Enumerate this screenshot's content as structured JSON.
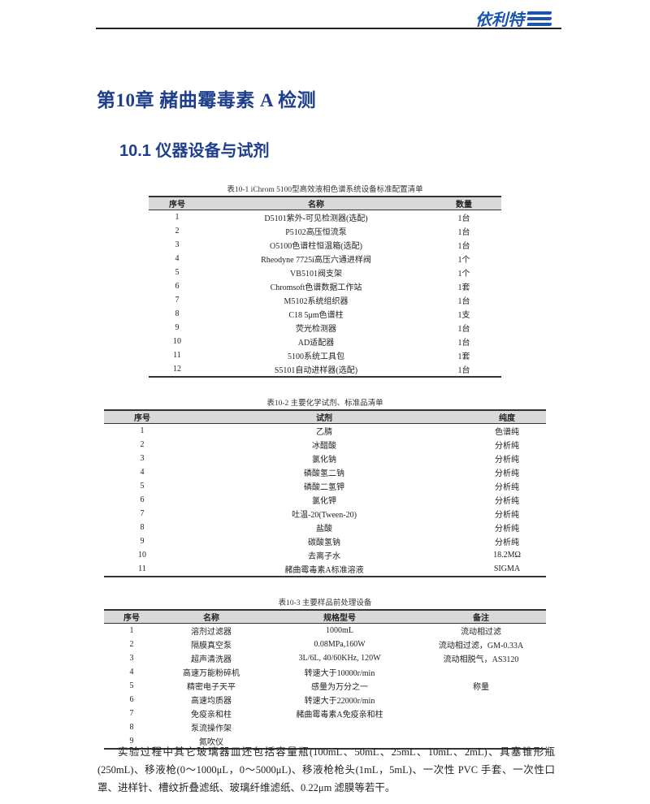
{
  "header": {
    "logo_text": "依利特",
    "brand_color": "#1a56b0"
  },
  "chapter_title": "第10章  赭曲霉毒素 A 检测",
  "section_title": "10.1   仪器设备与试剂",
  "heading_color": "#1f3f8c",
  "table1": {
    "caption": "表10-1    iChrom 5100型高效液相色谱系统设备标准配置清单",
    "headers": [
      "序号",
      "名称",
      "数量"
    ],
    "rows": [
      [
        "1",
        "D5101紫外-可见检测器(选配)",
        "1台"
      ],
      [
        "2",
        "P5102高压恒流泵",
        "1台"
      ],
      [
        "3",
        "O5100色谱柱恒温箱(选配)",
        "1台"
      ],
      [
        "4",
        "Rheodyne 7725i高压六通进样阀",
        "1个"
      ],
      [
        "5",
        "VB5101阀支架",
        "1个"
      ],
      [
        "6",
        "Chromsoft色谱数据工作站",
        "1套"
      ],
      [
        "7",
        "M5102系统组织器",
        "1台"
      ],
      [
        "8",
        "C18 5μm色谱柱",
        "1支"
      ],
      [
        "9",
        "荧光检测器",
        "1台"
      ],
      [
        "10",
        "AD适配器",
        "1台"
      ],
      [
        "11",
        "5100系统工具包",
        "1套"
      ],
      [
        "12",
        "S5101自动进样器(选配)",
        "1台"
      ]
    ]
  },
  "table2": {
    "caption": "表10-2    主要化学试剂、标准品清单",
    "headers": [
      "序号",
      "试剂",
      "纯度"
    ],
    "rows": [
      [
        "1",
        "乙腈",
        "色谱纯"
      ],
      [
        "2",
        "冰醋酸",
        "分析纯"
      ],
      [
        "3",
        "氯化钠",
        "分析纯"
      ],
      [
        "4",
        "磷酸氢二钠",
        "分析纯"
      ],
      [
        "5",
        "磷酸二氢钾",
        "分析纯"
      ],
      [
        "6",
        "氯化钾",
        "分析纯"
      ],
      [
        "7",
        "吐温-20(Tween-20)",
        "分析纯"
      ],
      [
        "8",
        "盐酸",
        "分析纯"
      ],
      [
        "9",
        "碳酸氢钠",
        "分析纯"
      ],
      [
        "10",
        "去离子水",
        "18.2MΩ"
      ],
      [
        "11",
        "赭曲霉毒素A标准溶液",
        "SIGMA"
      ]
    ]
  },
  "table3": {
    "caption": "表10-3    主要样品前处理设备",
    "headers": [
      "序号",
      "名称",
      "规格型号",
      "备注"
    ],
    "rows": [
      [
        "1",
        "溶剂过滤器",
        "1000mL",
        "流动相过滤"
      ],
      [
        "2",
        "隔膜真空泵",
        "0.08MPa,160W",
        "流动相过滤，GM-0.33A"
      ],
      [
        "3",
        "超声清洗器",
        "3L/6L, 40/60KHz, 120W",
        "流动相脱气，AS3120"
      ],
      [
        "4",
        "高速万能粉碎机",
        "转速大于10000r/min",
        ""
      ],
      [
        "5",
        "精密电子天平",
        "感量为万分之一",
        "称量"
      ],
      [
        "6",
        "高速均质器",
        "转速大于22000r/min",
        ""
      ],
      [
        "7",
        "免疫亲和柱",
        "赭曲霉毒素A免疫亲和柱",
        ""
      ],
      [
        "8",
        "泵流操作架",
        "",
        ""
      ],
      [
        "9",
        "氮吹仪",
        "",
        ""
      ]
    ]
  },
  "paragraph": "实验过程中其它玻璃器皿还包括容量瓶(100mL、50mL、25mL、10mL、2mL)、具塞锥形瓶(250mL)、移液枪(0～1000μL，0～5000μL)、移液枪枪头(1mL，5mL)、一次性 PVC 手套、一次性口罩、进样针、槽纹折叠滤纸、玻璃纤维滤纸、0.22μm 滤膜等若干。"
}
